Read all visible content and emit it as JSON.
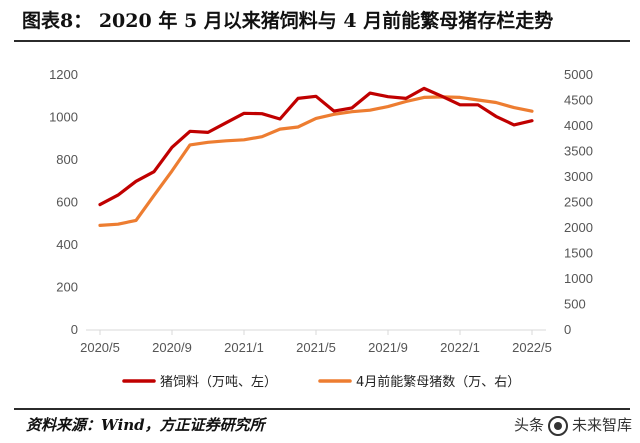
{
  "header": {
    "title": "图表8：  2020 年 5 月以来猪饲料与 4 月前能繁母猪存栏走势"
  },
  "footer": {
    "source": "资料来源：Wind，方正证券研究所"
  },
  "watermark": {
    "prefix": "头条",
    "suffix": "未来智库"
  },
  "colors": {
    "feed": "#c00000",
    "sows": "#ed7d31",
    "axis": "#d9d9d9",
    "text": "#555555"
  },
  "chart_data": {
    "type": "line",
    "x": [
      "2020/5",
      "2020/6",
      "2020/7",
      "2020/8",
      "2020/9",
      "2020/10",
      "2020/11",
      "2020/12",
      "2021/1",
      "2021/2",
      "2021/3",
      "2021/4",
      "2021/5",
      "2021/6",
      "2021/7",
      "2021/8",
      "2021/9",
      "2021/10",
      "2021/11",
      "2021/12",
      "2022/1",
      "2022/2",
      "2022/3",
      "2022/4",
      "2022/5"
    ],
    "xticks": [
      "2020/5",
      "2020/9",
      "2021/1",
      "2021/5",
      "2021/9",
      "2022/1",
      "2022/5"
    ],
    "y_left": {
      "ylim": [
        0,
        1200
      ],
      "ticks": [
        0,
        200,
        400,
        600,
        800,
        1000,
        1200
      ]
    },
    "y_right": {
      "ylim": [
        0,
        5000
      ],
      "ticks": [
        0,
        500,
        1000,
        1500,
        2000,
        2500,
        3000,
        3500,
        4000,
        4500,
        5000
      ]
    },
    "series": [
      {
        "name": "猪饲料（万吨、左）",
        "axis": "left",
        "values": [
          590,
          635,
          700,
          745,
          860,
          935,
          930,
          975,
          1020,
          1018,
          993,
          1090,
          1100,
          1030,
          1045,
          1115,
          1098,
          1090,
          1137,
          1100,
          1060,
          1060,
          1005,
          965,
          985
        ]
      },
      {
        "name": "4月前能繁母猪数（万、右）",
        "axis": "right",
        "values": [
          2050,
          2075,
          2150,
          2640,
          3120,
          3630,
          3680,
          3710,
          3730,
          3790,
          3940,
          3980,
          4150,
          4230,
          4280,
          4310,
          4380,
          4480,
          4560,
          4570,
          4560,
          4510,
          4460,
          4360,
          4290
        ]
      }
    ],
    "legend": "bottom",
    "grid": false
  }
}
